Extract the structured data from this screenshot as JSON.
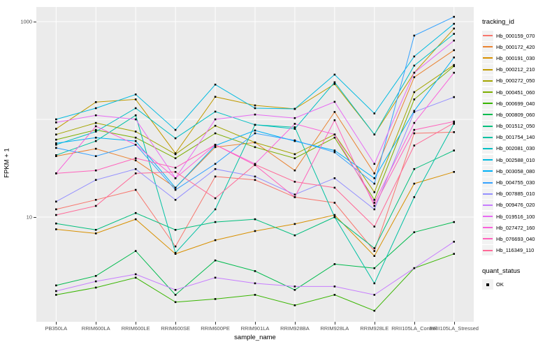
{
  "figure": {
    "panel_bg": "#EBEBEB",
    "grid_color": "#FFFFFF",
    "tick_color": "#333333",
    "axis_text_color": "#4D4D4D",
    "point_color": "#000000"
  },
  "chart_data": {
    "type": "line",
    "xlabel": "sample_name",
    "ylabel": "FPKM + 1",
    "y_scale": "log10",
    "ylim": [
      0.85,
      1400
    ],
    "y_ticks": [
      {
        "label": "1000",
        "value": 1000
      },
      {
        "label": "10",
        "value": 10
      }
    ],
    "y_gridlines": [
      10,
      100,
      1000
    ],
    "grid": true,
    "legend_position": "right",
    "point_marker": "small black square (quant_status OK)",
    "categories": [
      "PB350LA",
      "RRIM600LA",
      "RRIM600LE",
      "RRIM600SE",
      "RRIM600PE",
      "RRIM901LA",
      "RRIM928BA",
      "RRIM928LA",
      "RRIM928LE",
      "RRII105LA_Control",
      "RRII105LA_Stressed"
    ],
    "series": [
      {
        "name": "Hb_000159_070",
        "color": "#F8766D",
        "values": [
          12,
          15,
          19,
          5,
          26,
          24,
          16,
          14,
          4.5,
          72,
          74
        ]
      },
      {
        "name": "Hb_000172_420",
        "color": "#EA8331",
        "values": [
          42,
          50,
          38,
          20,
          52,
          58,
          30,
          119,
          28,
          270,
          510
        ]
      },
      {
        "name": "Hb_000191_030",
        "color": "#D89000",
        "values": [
          7.5,
          6.8,
          9.5,
          4.2,
          5.8,
          7.2,
          8.5,
          10.5,
          4,
          22,
          29
        ]
      },
      {
        "name": "Hb_000212_210",
        "color": "#C09B00",
        "values": [
          80,
          150,
          160,
          45,
          170,
          139,
          128,
          230,
          70,
          300,
          850
        ]
      },
      {
        "name": "Hb_000272_050",
        "color": "#A3A500",
        "values": [
          70,
          92,
          75,
          44,
          86,
          58,
          44,
          70,
          18,
          190,
          360
        ]
      },
      {
        "name": "Hb_000451_060",
        "color": "#7CAE00",
        "values": [
          62,
          78,
          65,
          40,
          72,
          52,
          40,
          65,
          15,
          160,
          350
        ]
      },
      {
        "name": "Hb_000699_040",
        "color": "#39B600",
        "values": [
          1.6,
          1.9,
          2.4,
          1.35,
          1.45,
          1.6,
          1.25,
          1.6,
          1.1,
          3,
          4.2
        ]
      },
      {
        "name": "Hb_000809_060",
        "color": "#00BB4E",
        "values": [
          2,
          2.5,
          4.5,
          1.6,
          3.6,
          2.8,
          1.8,
          3.3,
          3,
          7,
          8.9
        ]
      },
      {
        "name": "Hb_001512_050",
        "color": "#00BF7D",
        "values": [
          8.6,
          7.4,
          11,
          7.4,
          8.9,
          9.5,
          6.5,
          10,
          4.8,
          31,
          48
        ]
      },
      {
        "name": "Hb_001754_140",
        "color": "#00C1A3",
        "values": [
          43,
          60,
          110,
          4.3,
          12,
          88,
          83,
          10,
          2.1,
          16,
          90
        ]
      },
      {
        "name": "Hb_002081_030",
        "color": "#00BFC4",
        "values": [
          55,
          75,
          130,
          64,
          120,
          88,
          80,
          240,
          70,
          355,
          750
        ]
      },
      {
        "name": "Hb_002588_010",
        "color": "#00BAE0",
        "values": [
          100,
          130,
          180,
          78,
          227,
          130,
          128,
          287,
          115,
          440,
          950
        ]
      },
      {
        "name": "Hb_003058_080",
        "color": "#00B0F6",
        "values": [
          57,
          65,
          60,
          20,
          54,
          77,
          60,
          48,
          25,
          122,
          430
        ]
      },
      {
        "name": "Hb_004755_030",
        "color": "#35A2FF",
        "values": [
          51,
          42,
          55,
          19,
          35,
          72,
          61,
          46,
          22,
          720,
          1120
        ]
      },
      {
        "name": "Hb_007885_010",
        "color": "#9590FF",
        "values": [
          14.4,
          24,
          31,
          15,
          31,
          26,
          17,
          25,
          12,
          119,
          169
        ]
      },
      {
        "name": "Hb_009476_020",
        "color": "#C77CFF",
        "values": [
          1.75,
          2.2,
          2.6,
          1.8,
          2.4,
          2.1,
          1.95,
          1.95,
          1.6,
          3,
          5.6
        ]
      },
      {
        "name": "Hb_019516_100",
        "color": "#E76BF3",
        "values": [
          93,
          110,
          100,
          25,
          100,
          112,
          103,
          151,
          35,
          300,
          640
        ]
      },
      {
        "name": "Hb_027472_160",
        "color": "#FA62DB",
        "values": [
          28,
          85,
          55,
          25,
          55,
          35,
          90,
          70,
          14,
          92,
          300
        ]
      },
      {
        "name": "Hb_076693_040",
        "color": "#FF62BC",
        "values": [
          28,
          30,
          40,
          32,
          55,
          34,
          16,
          98,
          13,
          78,
          95
        ]
      },
      {
        "name": "Hb_116349_110",
        "color": "#FF6A98",
        "values": [
          10.5,
          13,
          28,
          29,
          15.6,
          34.5,
          23,
          20,
          8,
          54,
          92
        ]
      }
    ]
  },
  "legend": {
    "tracking_title": "tracking_id",
    "quant_title": "quant_status",
    "quant_items": [
      {
        "label": "OK"
      }
    ]
  }
}
